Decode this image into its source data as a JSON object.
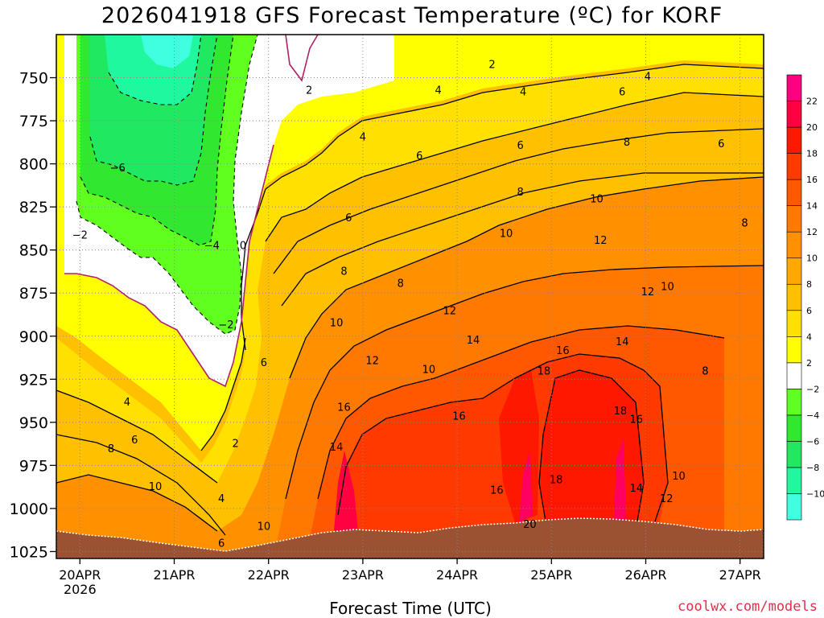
{
  "chart_data": {
    "type": "heatmap",
    "title": "2026041918 GFS Forecast Temperature (ºC) for KORF",
    "xlabel": "Forecast Time (UTC)",
    "ylabel": "",
    "x_ticks": [
      {
        "label": "20APR",
        "sub": "2026",
        "day": 0.25
      },
      {
        "label": "21APR",
        "sub": "",
        "day": 1.25
      },
      {
        "label": "22APR",
        "sub": "",
        "day": 2.25
      },
      {
        "label": "23APR",
        "sub": "",
        "day": 3.25
      },
      {
        "label": "24APR",
        "sub": "",
        "day": 4.25
      },
      {
        "label": "25APR",
        "sub": "",
        "day": 5.25
      },
      {
        "label": "26APR",
        "sub": "",
        "day": 6.25
      },
      {
        "label": "27APR",
        "sub": "",
        "day": 7.25
      }
    ],
    "xlim_days": [
      0,
      7.5
    ],
    "y_ticks": [
      750,
      775,
      800,
      825,
      850,
      875,
      900,
      925,
      950,
      975,
      1000,
      1025
    ],
    "ylim_hpa": [
      725,
      1029
    ],
    "colorbar": {
      "labels": [
        22,
        20,
        18,
        16,
        14,
        12,
        10,
        8,
        6,
        4,
        2,
        -2,
        -4,
        -6,
        -8,
        -10
      ],
      "bands": [
        {
          "min": -12,
          "max": -10,
          "color": "#40ffe0"
        },
        {
          "min": -10,
          "max": -8,
          "color": "#20f8a0"
        },
        {
          "min": -8,
          "max": -6,
          "color": "#20e860"
        },
        {
          "min": -6,
          "max": -4,
          "color": "#30e830"
        },
        {
          "min": -4,
          "max": -2,
          "color": "#60ff20"
        },
        {
          "min": -2,
          "max": 2,
          "color": "#ffffff"
        },
        {
          "min": 2,
          "max": 4,
          "color": "#ffff00"
        },
        {
          "min": 4,
          "max": 6,
          "color": "#ffe000"
        },
        {
          "min": 6,
          "max": 8,
          "color": "#ffc000"
        },
        {
          "min": 8,
          "max": 10,
          "color": "#ffa800"
        },
        {
          "min": 10,
          "max": 12,
          "color": "#ff9000"
        },
        {
          "min": 12,
          "max": 14,
          "color": "#ff7800"
        },
        {
          "min": 14,
          "max": 16,
          "color": "#ff5800"
        },
        {
          "min": 16,
          "max": 18,
          "color": "#ff3a00"
        },
        {
          "min": 18,
          "max": 20,
          "color": "#ff1800"
        },
        {
          "min": 20,
          "max": 22,
          "color": "#ff0040"
        },
        {
          "min": 22,
          "max": 24,
          "color": "#ff0080"
        }
      ]
    },
    "contour_labels": [
      {
        "t": -6,
        "day": 0.65,
        "p": 802
      },
      {
        "t": -2,
        "day": 0.25,
        "p": 841
      },
      {
        "t": -4,
        "day": 1.65,
        "p": 847
      },
      {
        "t": 0,
        "day": 1.98,
        "p": 847
      },
      {
        "t": -2,
        "day": 1.8,
        "p": 893
      },
      {
        "t": 2,
        "day": 2.68,
        "p": 757
      },
      {
        "t": 4,
        "day": 3.25,
        "p": 784
      },
      {
        "t": 6,
        "day": 3.1,
        "p": 831
      },
      {
        "t": 8,
        "day": 3.05,
        "p": 862
      },
      {
        "t": 10,
        "day": 2.97,
        "p": 892
      },
      {
        "t": 6,
        "day": 2.2,
        "p": 915
      },
      {
        "t": 4,
        "day": 0.75,
        "p": 938
      },
      {
        "t": 6,
        "day": 0.83,
        "p": 960
      },
      {
        "t": 8,
        "day": 0.58,
        "p": 965
      },
      {
        "t": 10,
        "day": 1.05,
        "p": 987
      },
      {
        "t": 2,
        "day": 1.9,
        "p": 962
      },
      {
        "t": 4,
        "day": 1.75,
        "p": 994
      },
      {
        "t": 6,
        "day": 1.75,
        "p": 1020
      },
      {
        "t": 10,
        "day": 2.2,
        "p": 1010
      },
      {
        "t": 12,
        "day": 3.35,
        "p": 914
      },
      {
        "t": 14,
        "day": 2.97,
        "p": 964
      },
      {
        "t": 16,
        "day": 3.05,
        "p": 941
      },
      {
        "t": 8,
        "day": 3.65,
        "p": 869
      },
      {
        "t": 10,
        "day": 3.95,
        "p": 919
      },
      {
        "t": 4,
        "day": 4.05,
        "p": 757
      },
      {
        "t": 6,
        "day": 3.85,
        "p": 795
      },
      {
        "t": 12,
        "day": 4.17,
        "p": 885
      },
      {
        "t": 14,
        "day": 4.42,
        "p": 902
      },
      {
        "t": 16,
        "day": 4.27,
        "p": 946
      },
      {
        "t": 10,
        "day": 4.77,
        "p": 840
      },
      {
        "t": 2,
        "day": 4.62,
        "p": 742
      },
      {
        "t": 4,
        "day": 4.95,
        "p": 758
      },
      {
        "t": 6,
        "day": 4.92,
        "p": 789
      },
      {
        "t": 8,
        "day": 4.92,
        "p": 816
      },
      {
        "t": 16,
        "day": 4.67,
        "p": 989
      },
      {
        "t": 18,
        "day": 5.17,
        "p": 920
      },
      {
        "t": 20,
        "day": 5.02,
        "p": 1009
      },
      {
        "t": 18,
        "day": 5.3,
        "p": 983
      },
      {
        "t": 16,
        "day": 5.37,
        "p": 908
      },
      {
        "t": 10,
        "day": 5.73,
        "p": 820
      },
      {
        "t": 12,
        "day": 5.77,
        "p": 844
      },
      {
        "t": 14,
        "day": 6.0,
        "p": 903
      },
      {
        "t": 4,
        "day": 6.27,
        "p": 749
      },
      {
        "t": 6,
        "day": 6.0,
        "p": 758
      },
      {
        "t": 8,
        "day": 6.05,
        "p": 787
      },
      {
        "t": 18,
        "day": 5.98,
        "p": 943
      },
      {
        "t": 16,
        "day": 6.15,
        "p": 948
      },
      {
        "t": 14,
        "day": 6.15,
        "p": 988
      },
      {
        "t": 12,
        "day": 6.27,
        "p": 874
      },
      {
        "t": 10,
        "day": 6.48,
        "p": 871
      },
      {
        "t": 12,
        "day": 6.47,
        "p": 994
      },
      {
        "t": 10,
        "day": 6.6,
        "p": 981
      },
      {
        "t": 6,
        "day": 7.05,
        "p": 788
      },
      {
        "t": 8,
        "day": 7.3,
        "p": 834
      },
      {
        "t": 8,
        "day": 6.88,
        "p": 920
      }
    ],
    "grid": true,
    "legend": "colorbar-right"
  },
  "credit": "coolwx.com/models"
}
